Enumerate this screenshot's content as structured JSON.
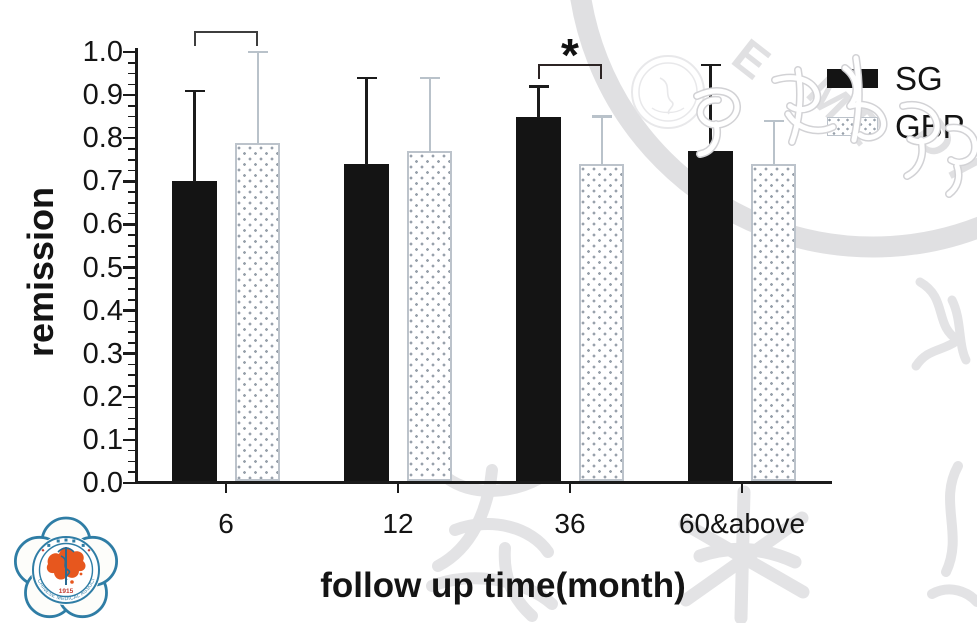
{
  "chart_data": {
    "type": "bar",
    "title": "",
    "ylabel": "remission",
    "xlabel": "follow up time(month)",
    "categories": [
      "6",
      "12",
      "36",
      "60&above"
    ],
    "series": [
      {
        "name": "SG",
        "fill": "solid-black",
        "values": [
          0.7,
          0.74,
          0.85,
          0.77
        ],
        "error_top": [
          0.91,
          0.94,
          0.92,
          0.97
        ]
      },
      {
        "name": "GBP",
        "fill": "white-dotted",
        "values": [
          0.79,
          0.77,
          0.74,
          0.74
        ],
        "error_top": [
          1.0,
          0.94,
          0.85,
          0.84
        ]
      }
    ],
    "ylim": [
      0.0,
      1.0
    ],
    "ytick_step": 0.1,
    "yminor_step": 0.025,
    "grid": false,
    "legend_position": "top-right",
    "significance": [
      {
        "category": "6",
        "label": ""
      },
      {
        "category": "36",
        "label": "*"
      }
    ]
  },
  "colors": {
    "bar_sg": "#141414",
    "gbp_border": "#bcc3cb",
    "gbp_dot": "#98a1ab",
    "gbp_error": "#b9c2ca",
    "axis": "#1b1b1b",
    "watermark_gray": "#e0e0e2",
    "logo_blue": "#2f7da5",
    "logo_orange": "#e7571e",
    "logo_red": "#c23a2f"
  },
  "watermarks": {
    "ring_letters": "EMEDI",
    "bottom_left_logo": {
      "ring_text": "CHINESE MEDICAL ASSOCIATION",
      "year": "1915"
    }
  }
}
